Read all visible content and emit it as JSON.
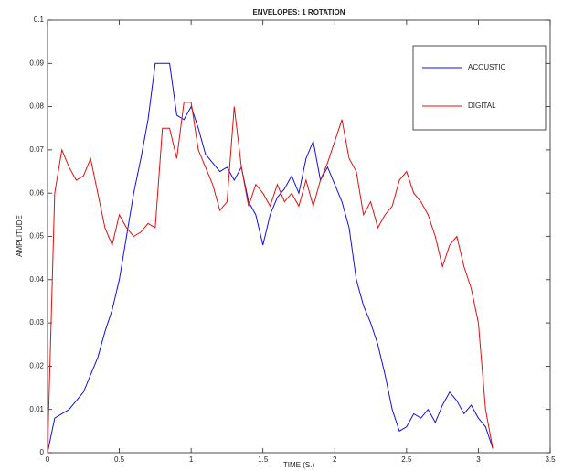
{
  "chart_data": {
    "type": "line",
    "title": "ENVELOPES: 1 ROTATION",
    "x_label": "TIME (S.)",
    "y_label": "AMPLITUDE",
    "x": [
      0,
      0.05,
      0.1,
      0.15,
      0.2,
      0.25,
      0.3,
      0.35,
      0.4,
      0.45,
      0.5,
      0.55,
      0.6,
      0.65,
      0.7,
      0.75,
      0.8,
      0.85,
      0.9,
      0.95,
      1.0,
      1.05,
      1.1,
      1.15,
      1.2,
      1.25,
      1.3,
      1.35,
      1.4,
      1.45,
      1.5,
      1.55,
      1.6,
      1.65,
      1.7,
      1.75,
      1.8,
      1.85,
      1.9,
      1.95,
      2.0,
      2.05,
      2.1,
      2.15,
      2.2,
      2.25,
      2.3,
      2.35,
      2.4,
      2.45,
      2.5,
      2.55,
      2.6,
      2.65,
      2.7,
      2.75,
      2.8,
      2.85,
      2.9,
      2.95,
      3.0,
      3.05,
      3.1
    ],
    "series": [
      {
        "name": "ACOUSTIC",
        "color": "#1010e0",
        "values": [
          0,
          0.008,
          0.009,
          0.01,
          0.012,
          0.014,
          0.018,
          0.022,
          0.028,
          0.033,
          0.04,
          0.05,
          0.06,
          0.068,
          0.077,
          0.09,
          0.09,
          0.09,
          0.078,
          0.077,
          0.08,
          0.075,
          0.069,
          0.067,
          0.065,
          0.066,
          0.063,
          0.066,
          0.058,
          0.055,
          0.048,
          0.055,
          0.059,
          0.061,
          0.064,
          0.06,
          0.068,
          0.072,
          0.063,
          0.066,
          0.062,
          0.058,
          0.052,
          0.04,
          0.034,
          0.03,
          0.025,
          0.018,
          0.01,
          0.005,
          0.006,
          0.009,
          0.008,
          0.01,
          0.007,
          0.011,
          0.014,
          0.012,
          0.009,
          0.011,
          0.008,
          0.006,
          0.001
        ]
      },
      {
        "name": "DIGITAL",
        "color": "#e01010",
        "values": [
          0,
          0.06,
          0.07,
          0.066,
          0.063,
          0.064,
          0.068,
          0.06,
          0.052,
          0.048,
          0.055,
          0.052,
          0.05,
          0.051,
          0.053,
          0.052,
          0.075,
          0.075,
          0.068,
          0.081,
          0.081,
          0.07,
          0.066,
          0.062,
          0.056,
          0.058,
          0.08,
          0.066,
          0.057,
          0.062,
          0.06,
          0.057,
          0.062,
          0.058,
          0.06,
          0.057,
          0.063,
          0.057,
          0.063,
          0.067,
          0.072,
          0.077,
          0.068,
          0.065,
          0.055,
          0.058,
          0.052,
          0.055,
          0.057,
          0.063,
          0.065,
          0.06,
          0.058,
          0.055,
          0.05,
          0.043,
          0.048,
          0.05,
          0.043,
          0.038,
          0.03,
          0.01,
          0.001
        ]
      }
    ],
    "xlim": [
      0,
      3.5
    ],
    "xticks": [
      0,
      0.5,
      1,
      1.5,
      2,
      2.5,
      3,
      3.5
    ],
    "ylim": [
      0,
      0.1
    ],
    "yticks": [
      0,
      0.01,
      0.02,
      0.03,
      0.04,
      0.05,
      0.06,
      0.07,
      0.08,
      0.09,
      0.1
    ],
    "grid": false,
    "legend": "top-right"
  }
}
